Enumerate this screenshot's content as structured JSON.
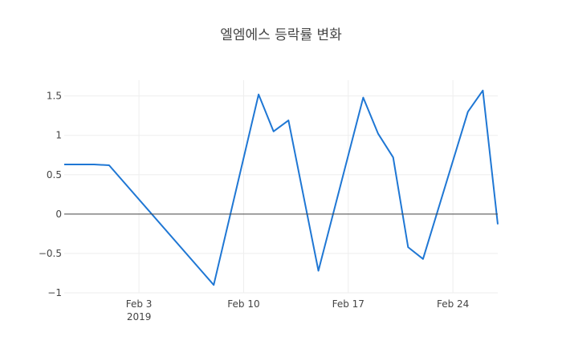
{
  "chart_data": {
    "type": "line",
    "title": "엘엠에스 등락률 변화",
    "xlabel": "",
    "ylabel": "",
    "x_ticks": [
      {
        "date": "2019-02-03",
        "label": "Feb 3",
        "sublabel": "2019"
      },
      {
        "date": "2019-02-10",
        "label": "Feb 10",
        "sublabel": ""
      },
      {
        "date": "2019-02-17",
        "label": "Feb 17",
        "sublabel": ""
      },
      {
        "date": "2019-02-24",
        "label": "Feb 24",
        "sublabel": ""
      }
    ],
    "y_ticks": [
      {
        "value": -1,
        "label": "−1"
      },
      {
        "value": -0.5,
        "label": "−0.5"
      },
      {
        "value": 0,
        "label": "0"
      },
      {
        "value": 0.5,
        "label": "0.5"
      },
      {
        "value": 1,
        "label": "1"
      },
      {
        "value": 1.5,
        "label": "1.5"
      }
    ],
    "xlim": [
      "2019-01-29",
      "2019-02-27"
    ],
    "ylim": [
      -1.0,
      1.7
    ],
    "grid": true,
    "color": "#1f77d4",
    "series": [
      {
        "x": [
          "2019-01-29",
          "2019-01-31",
          "2019-02-01",
          "2019-02-08",
          "2019-02-11",
          "2019-02-12",
          "2019-02-13",
          "2019-02-15",
          "2019-02-18",
          "2019-02-19",
          "2019-02-20",
          "2019-02-21",
          "2019-02-22",
          "2019-02-25",
          "2019-02-26",
          "2019-02-27"
        ],
        "y": [
          0.63,
          0.63,
          0.62,
          -0.9,
          1.52,
          1.05,
          1.19,
          -0.72,
          1.48,
          1.02,
          0.72,
          -0.42,
          -0.57,
          1.3,
          1.57,
          -0.13
        ]
      }
    ]
  }
}
